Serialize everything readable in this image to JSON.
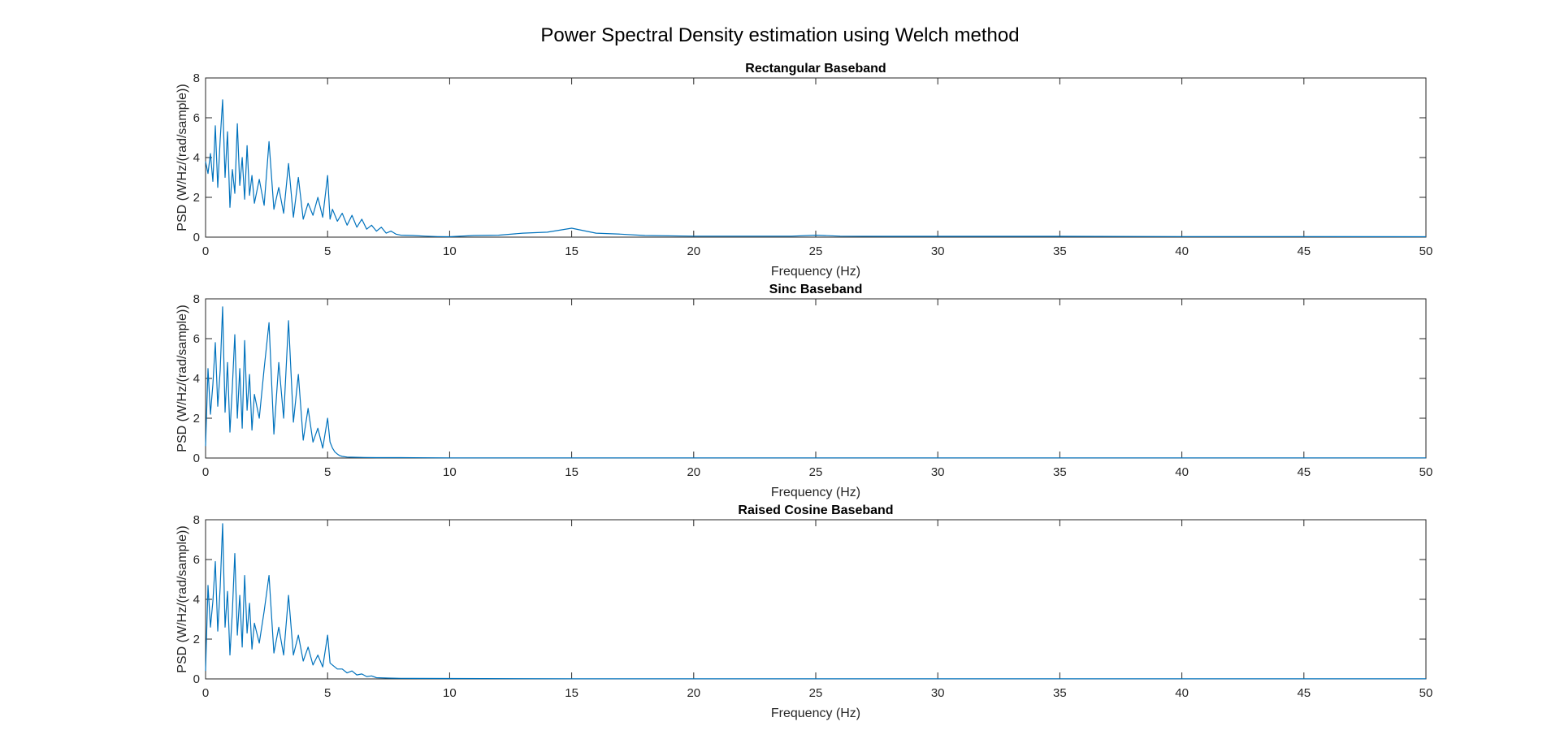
{
  "figure": {
    "title": "Power Spectral Density estimation using Welch method"
  },
  "colors": {
    "line": "#0072BD",
    "axes": "#262626",
    "background": "#ffffff"
  },
  "chart_data": [
    {
      "type": "line",
      "title": "Rectangular Baseband",
      "xlabel": "Frequency (Hz)",
      "ylabel": "PSD (W/Hz/(rad/sample))",
      "xlim": [
        0,
        50
      ],
      "ylim": [
        0,
        8
      ],
      "xticks": [
        0,
        5,
        10,
        15,
        20,
        25,
        30,
        35,
        40,
        45,
        50
      ],
      "yticks": [
        0,
        2,
        4,
        6,
        8
      ],
      "grid": false,
      "series": [
        {
          "x": [
            0,
            0.1,
            0.2,
            0.3,
            0.4,
            0.5,
            0.6,
            0.7,
            0.8,
            0.9,
            1.0,
            1.1,
            1.2,
            1.3,
            1.4,
            1.5,
            1.6,
            1.7,
            1.8,
            1.9,
            2.0,
            2.2,
            2.4,
            2.6,
            2.8,
            3.0,
            3.2,
            3.4,
            3.6,
            3.8,
            4.0,
            4.2,
            4.4,
            4.6,
            4.8,
            5.0,
            5.1,
            5.2,
            5.4,
            5.6,
            5.8,
            6.0,
            6.2,
            6.4,
            6.6,
            6.8,
            7.0,
            7.2,
            7.4,
            7.6,
            7.8,
            8.0,
            8.5,
            9.0,
            9.5,
            10,
            11,
            12,
            13,
            14,
            15,
            16,
            17,
            18,
            20,
            22,
            24,
            25,
            26,
            28,
            30,
            35,
            40,
            45,
            50
          ],
          "y": [
            3.8,
            3.2,
            4.2,
            2.8,
            5.6,
            2.5,
            4.9,
            6.9,
            3.0,
            5.3,
            1.5,
            3.4,
            2.2,
            5.7,
            2.6,
            4.0,
            1.9,
            4.6,
            2.1,
            3.1,
            1.7,
            2.9,
            1.6,
            4.8,
            1.4,
            2.5,
            1.2,
            3.7,
            1.0,
            3.0,
            0.9,
            1.7,
            1.1,
            2.0,
            1.0,
            3.1,
            0.9,
            1.4,
            0.8,
            1.2,
            0.6,
            1.1,
            0.5,
            0.9,
            0.4,
            0.6,
            0.3,
            0.5,
            0.2,
            0.3,
            0.15,
            0.1,
            0.08,
            0.05,
            0.03,
            0.02,
            0.08,
            0.1,
            0.2,
            0.25,
            0.45,
            0.2,
            0.15,
            0.08,
            0.05,
            0.05,
            0.05,
            0.1,
            0.05,
            0.04,
            0.04,
            0.04,
            0.03,
            0.03,
            0.02
          ]
        }
      ]
    },
    {
      "type": "line",
      "title": "Sinc Baseband",
      "xlabel": "Frequency (Hz)",
      "ylabel": "PSD (W/Hz/(rad/sample))",
      "xlim": [
        0,
        50
      ],
      "ylim": [
        0,
        8
      ],
      "xticks": [
        0,
        5,
        10,
        15,
        20,
        25,
        30,
        35,
        40,
        45,
        50
      ],
      "yticks": [
        0,
        2,
        4,
        6,
        8
      ],
      "grid": false,
      "series": [
        {
          "x": [
            0,
            0.1,
            0.2,
            0.3,
            0.4,
            0.5,
            0.6,
            0.7,
            0.8,
            0.9,
            1.0,
            1.1,
            1.2,
            1.3,
            1.4,
            1.5,
            1.6,
            1.7,
            1.8,
            1.9,
            2.0,
            2.2,
            2.4,
            2.6,
            2.8,
            3.0,
            3.2,
            3.4,
            3.6,
            3.8,
            4.0,
            4.2,
            4.4,
            4.6,
            4.8,
            5.0,
            5.1,
            5.2,
            5.3,
            5.4,
            5.5,
            5.6,
            5.8,
            6.0,
            6.5,
            7,
            8,
            10,
            15,
            20,
            25,
            30,
            35,
            40,
            45,
            50
          ],
          "y": [
            0.6,
            4.5,
            2.2,
            3.7,
            5.8,
            2.6,
            4.4,
            7.6,
            2.3,
            4.8,
            1.3,
            3.6,
            6.2,
            2.0,
            4.5,
            1.5,
            5.9,
            2.4,
            4.2,
            1.4,
            3.2,
            2.0,
            4.5,
            6.8,
            1.2,
            4.8,
            2.0,
            6.9,
            1.8,
            4.2,
            0.9,
            2.5,
            0.8,
            1.5,
            0.5,
            2.0,
            0.8,
            0.5,
            0.3,
            0.2,
            0.12,
            0.08,
            0.05,
            0.04,
            0.03,
            0.02,
            0.02,
            0.01,
            0.01,
            0.01,
            0.01,
            0.01,
            0.01,
            0.01,
            0.01,
            0.01
          ]
        }
      ]
    },
    {
      "type": "line",
      "title": "Raised Cosine Baseband",
      "xlabel": "Frequency (Hz)",
      "ylabel": "PSD (W/Hz/(rad/sample))",
      "xlim": [
        0,
        50
      ],
      "ylim": [
        0,
        8
      ],
      "xticks": [
        0,
        5,
        10,
        15,
        20,
        25,
        30,
        35,
        40,
        45,
        50
      ],
      "yticks": [
        0,
        2,
        4,
        6,
        8
      ],
      "grid": false,
      "series": [
        {
          "x": [
            0,
            0.1,
            0.2,
            0.3,
            0.4,
            0.5,
            0.6,
            0.7,
            0.8,
            0.9,
            1.0,
            1.1,
            1.2,
            1.3,
            1.4,
            1.5,
            1.6,
            1.7,
            1.8,
            1.9,
            2.0,
            2.2,
            2.4,
            2.6,
            2.8,
            3.0,
            3.2,
            3.4,
            3.6,
            3.8,
            4.0,
            4.2,
            4.4,
            4.6,
            4.8,
            5.0,
            5.1,
            5.2,
            5.4,
            5.6,
            5.8,
            6.0,
            6.2,
            6.4,
            6.6,
            6.8,
            7.0,
            7.5,
            8,
            10,
            15,
            20,
            25,
            30,
            35,
            40,
            45,
            50
          ],
          "y": [
            0.4,
            4.7,
            2.6,
            3.9,
            5.9,
            2.4,
            4.6,
            7.8,
            2.6,
            4.4,
            1.2,
            3.4,
            6.3,
            2.2,
            4.2,
            1.6,
            5.2,
            2.3,
            3.8,
            1.5,
            2.8,
            1.8,
            3.4,
            5.2,
            1.3,
            2.6,
            1.2,
            4.2,
            1.2,
            2.2,
            0.9,
            1.6,
            0.7,
            1.2,
            0.6,
            2.2,
            0.8,
            0.7,
            0.5,
            0.5,
            0.3,
            0.4,
            0.2,
            0.25,
            0.12,
            0.15,
            0.06,
            0.04,
            0.03,
            0.02,
            0.01,
            0.01,
            0.01,
            0.01,
            0.01,
            0.01,
            0.01,
            0.01
          ]
        }
      ]
    }
  ]
}
